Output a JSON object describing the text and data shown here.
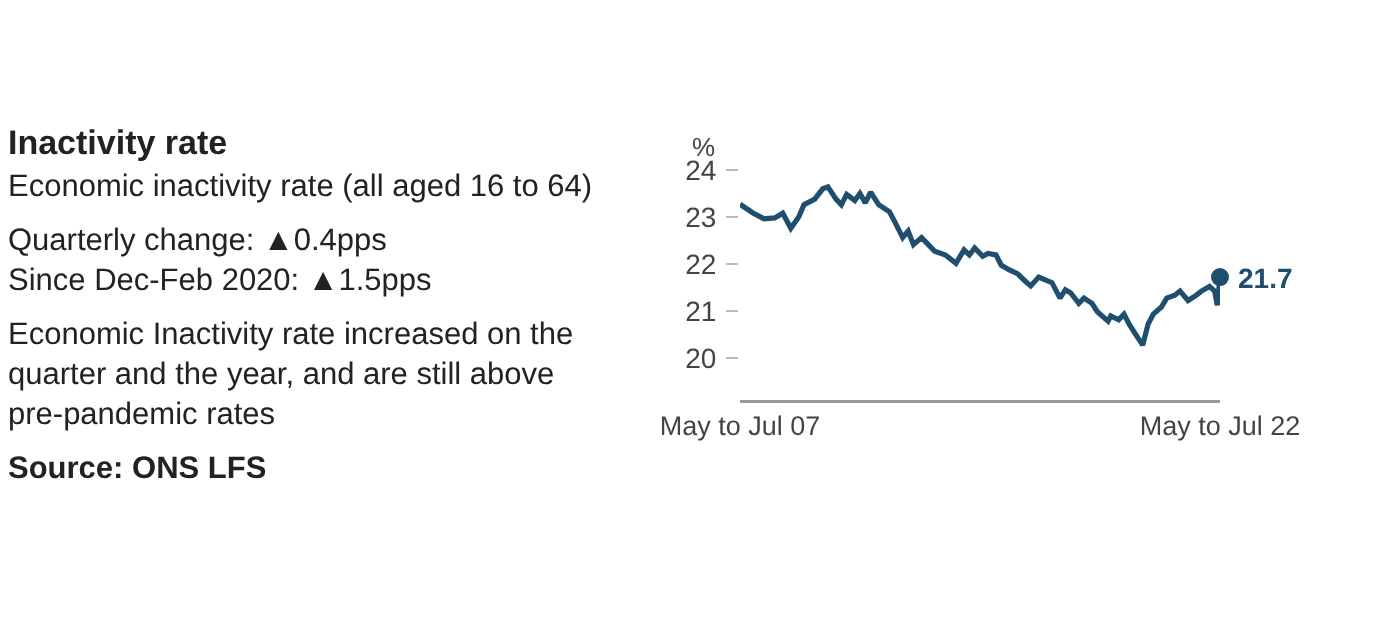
{
  "chart_data": {
    "type": "line",
    "title": "Inactivity rate",
    "subtitle": "Economic inactivity rate (all aged 16 to 64)",
    "ylabel": "%",
    "annotations": [
      "Quarterly change: ▲0.4pps",
      "Since Dec-Feb 2020: ▲1.5pps",
      "Economic Inactivity rate increased on the quarter and the year, and are still above pre-pandemic rates",
      "Source: ONS LFS"
    ],
    "x": [
      "2007-06",
      "2007-11",
      "2008-03",
      "2008-07",
      "2008-10",
      "2009-01",
      "2009-04",
      "2009-06",
      "2009-10",
      "2010-01",
      "2010-03",
      "2010-06",
      "2010-08",
      "2010-10",
      "2011-01",
      "2011-03",
      "2011-05",
      "2011-07",
      "2011-10",
      "2012-02",
      "2012-04",
      "2012-07",
      "2012-09",
      "2012-11",
      "2013-02",
      "2013-05",
      "2013-07",
      "2013-11",
      "2014-03",
      "2014-06",
      "2014-08",
      "2014-10",
      "2015-01",
      "2015-03",
      "2015-06",
      "2015-08",
      "2015-11",
      "2016-02",
      "2016-05",
      "2016-07",
      "2016-10",
      "2016-12",
      "2017-03",
      "2017-06",
      "2017-08",
      "2017-10",
      "2018-01",
      "2018-03",
      "2018-06",
      "2018-08",
      "2018-12",
      "2019-01",
      "2019-04",
      "2019-06",
      "2019-08",
      "2019-10",
      "2020-01",
      "2020-03",
      "2020-05",
      "2020-08",
      "2020-10",
      "2021-01",
      "2021-03",
      "2021-06",
      "2021-09",
      "2021-11",
      "2022-02",
      "2022-04",
      "2022-05",
      "2022-06"
    ],
    "series": [
      {
        "color": "#1f4e6e",
        "values": [
          23.27,
          23.08,
          22.96,
          22.98,
          23.08,
          22.76,
          23.0,
          23.26,
          23.38,
          23.6,
          23.64,
          23.38,
          23.26,
          23.48,
          23.35,
          23.5,
          23.3,
          23.53,
          23.26,
          23.11,
          22.9,
          22.56,
          22.7,
          22.41,
          22.56,
          22.39,
          22.27,
          22.19,
          22.01,
          22.3,
          22.19,
          22.34,
          22.16,
          22.22,
          22.19,
          21.97,
          21.87,
          21.79,
          21.63,
          21.53,
          21.72,
          21.67,
          21.6,
          21.27,
          21.45,
          21.38,
          21.16,
          21.27,
          21.16,
          20.98,
          20.78,
          20.89,
          20.81,
          20.93,
          20.71,
          20.53,
          20.27,
          20.71,
          20.93,
          21.08,
          21.27,
          21.33,
          21.42,
          21.22,
          21.33,
          21.42,
          21.52,
          21.42,
          21.12,
          21.72
        ],
        "value_labels": [
          null,
          null,
          null,
          null,
          null,
          null,
          null,
          null,
          null,
          null,
          null,
          null,
          null,
          null,
          null,
          null,
          null,
          null,
          null,
          null,
          null,
          null,
          null,
          null,
          null,
          null,
          null,
          null,
          null,
          null,
          null,
          null,
          null,
          null,
          null,
          null,
          null,
          null,
          null,
          null,
          null,
          null,
          null,
          null,
          null,
          null,
          null,
          null,
          null,
          null,
          null,
          null,
          null,
          null,
          null,
          null,
          null,
          null,
          null,
          null,
          null,
          null,
          null,
          null,
          null,
          null,
          null,
          null,
          null,
          "21.7"
        ]
      }
    ],
    "xlim": [
      "2007-06",
      "2022-06"
    ],
    "xticks": [
      {
        "value": "2007-06",
        "label": "May to Jul 07"
      },
      {
        "value": "2022-06",
        "label": "May to Jul 22"
      }
    ],
    "ylim": [
      19.1,
      24
    ],
    "yticks": [
      20,
      21,
      22,
      23,
      24
    ]
  }
}
